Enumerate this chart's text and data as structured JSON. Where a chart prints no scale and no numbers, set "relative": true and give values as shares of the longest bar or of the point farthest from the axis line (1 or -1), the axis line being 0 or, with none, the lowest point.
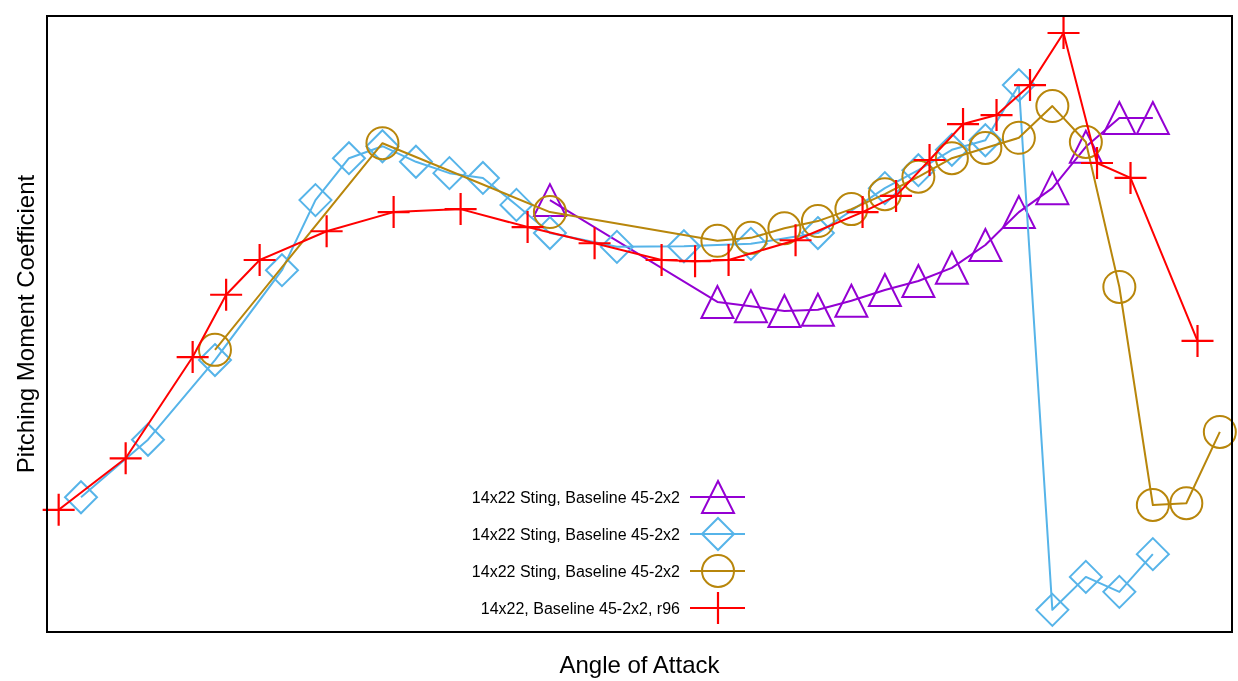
{
  "chart_data": {
    "type": "line",
    "xlabel": "Angle of Attack",
    "ylabel": "Pitching Moment Coefficient",
    "relative": true,
    "legend": "bottom",
    "line_style": "solid",
    "categories": [
      null,
      null,
      null,
      null,
      null,
      null,
      null,
      null,
      null,
      null,
      null,
      null,
      null,
      null,
      null,
      null,
      null,
      null,
      null,
      null,
      null,
      null,
      null,
      null,
      null,
      null,
      null,
      null,
      null,
      null,
      null,
      null,
      null,
      null,
      null,
      null,
      null,
      null,
      null,
      null,
      null,
      null,
      null,
      null,
      null,
      null,
      null,
      null,
      null,
      null,
      null,
      null,
      null,
      null,
      null,
      null,
      null,
      null,
      null,
      null,
      null,
      null,
      null,
      null,
      null,
      null,
      null,
      null,
      null,
      null,
      null,
      null,
      null,
      null,
      null,
      null,
      null,
      null,
      null,
      null,
      null,
      null,
      null,
      null,
      null,
      null,
      null,
      null,
      null,
      null,
      null,
      null,
      null,
      null,
      null,
      null,
      null,
      null,
      null,
      null,
      null,
      null,
      null,
      null,
      null,
      null,
      null
    ],
    "series": [
      {
        "name": "14x22 Sting, Baseline 45-2x2",
        "color": "#9400d3",
        "marker": "triangle",
        "values": [
          null,
          null,
          null,
          null,
          null,
          null,
          null,
          null,
          null,
          null,
          null,
          null,
          null,
          null,
          null,
          null,
          null,
          null,
          null,
          null,
          null,
          null,
          null,
          null,
          null,
          null,
          null,
          null,
          null,
          null,
          null,
          null,
          null,
          null,
          null,
          null,
          null,
          null,
          null,
          null,
          null,
          null,
          null,
          null,
          null,
          0.721,
          null,
          null,
          null,
          null,
          null,
          null,
          null,
          null,
          null,
          null,
          null,
          null,
          null,
          null,
          0.551,
          null,
          null,
          0.544,
          null,
          null,
          0.536,
          null,
          null,
          0.538,
          null,
          null,
          0.553,
          null,
          null,
          0.571,
          null,
          null,
          0.586,
          null,
          null,
          0.608,
          null,
          null,
          0.646,
          null,
          null,
          0.701,
          null,
          null,
          0.741,
          null,
          null,
          0.81,
          null,
          null,
          0.858,
          null,
          null,
          0.858,
          null,
          null,
          null,
          null,
          null,
          null,
          null
        ]
      },
      {
        "name": "14x22 Sting, Baseline 45-2x2",
        "color": "#56b4e9",
        "marker": "diamond",
        "values": [
          null,
          null,
          null,
          0.225,
          null,
          null,
          null,
          null,
          null,
          0.321,
          null,
          null,
          null,
          null,
          null,
          0.454,
          null,
          null,
          null,
          null,
          null,
          0.604,
          null,
          null,
          0.721,
          null,
          null,
          0.791,
          null,
          null,
          0.811,
          null,
          null,
          0.785,
          null,
          null,
          0.766,
          null,
          null,
          0.758,
          null,
          null,
          0.713,
          null,
          null,
          0.666,
          null,
          null,
          null,
          null,
          null,
          0.643,
          null,
          null,
          null,
          null,
          null,
          0.644,
          null,
          null,
          null,
          null,
          null,
          0.648,
          null,
          null,
          null,
          null,
          null,
          0.666,
          null,
          null,
          null,
          null,
          null,
          0.741,
          null,
          null,
          0.771,
          null,
          null,
          0.805,
          null,
          null,
          0.821,
          null,
          null,
          0.913,
          null,
          null,
          0.037,
          null,
          null,
          0.092,
          null,
          null,
          0.067,
          null,
          null,
          0.13,
          null,
          null,
          null,
          null,
          null,
          null,
          null
        ]
      },
      {
        "name": "14x22 Sting, Baseline 45-2x2",
        "color": "#b8860b",
        "marker": "circle",
        "values": [
          null,
          null,
          null,
          null,
          null,
          null,
          null,
          null,
          null,
          null,
          null,
          null,
          null,
          null,
          null,
          0.471,
          null,
          null,
          null,
          null,
          null,
          null,
          null,
          null,
          null,
          null,
          null,
          null,
          null,
          null,
          0.816,
          null,
          null,
          null,
          null,
          null,
          null,
          null,
          null,
          null,
          null,
          null,
          null,
          null,
          null,
          0.701,
          null,
          null,
          null,
          null,
          null,
          null,
          null,
          null,
          null,
          null,
          null,
          null,
          null,
          null,
          0.653,
          null,
          null,
          0.658,
          null,
          null,
          0.674,
          null,
          null,
          0.686,
          null,
          null,
          0.706,
          null,
          null,
          0.731,
          null,
          null,
          0.76,
          null,
          null,
          0.791,
          null,
          null,
          0.808,
          null,
          null,
          0.825,
          null,
          null,
          0.878,
          null,
          null,
          0.818,
          null,
          null,
          0.576,
          null,
          null,
          0.212,
          null,
          null,
          0.215,
          null,
          null,
          0.334,
          null
        ]
      },
      {
        "name": "14x22, Baseline 45-2x2, r96",
        "color": "#ff0000",
        "marker": "cross",
        "values": [
          null,
          0.204,
          null,
          null,
          null,
          null,
          null,
          0.29,
          null,
          null,
          null,
          null,
          null,
          0.459,
          null,
          null,
          0.563,
          null,
          null,
          0.621,
          null,
          null,
          null,
          null,
          null,
          0.669,
          null,
          null,
          null,
          null,
          null,
          0.701,
          null,
          null,
          null,
          null,
          null,
          0.706,
          null,
          null,
          null,
          null,
          null,
          0.676,
          null,
          null,
          null,
          null,
          null,
          0.649,
          null,
          null,
          null,
          null,
          null,
          0.621,
          null,
          null,
          0.619,
          null,
          null,
          0.621,
          null,
          null,
          null,
          null,
          null,
          0.654,
          null,
          null,
          null,
          null,
          null,
          0.701,
          null,
          null,
          0.728,
          null,
          null,
          0.788,
          null,
          null,
          0.848,
          null,
          null,
          0.863,
          null,
          null,
          0.913,
          null,
          null,
          1,
          null,
          null,
          0.783,
          null,
          null,
          0.758,
          null,
          null,
          null,
          null,
          null,
          0.486,
          null,
          null,
          null
        ]
      }
    ]
  }
}
